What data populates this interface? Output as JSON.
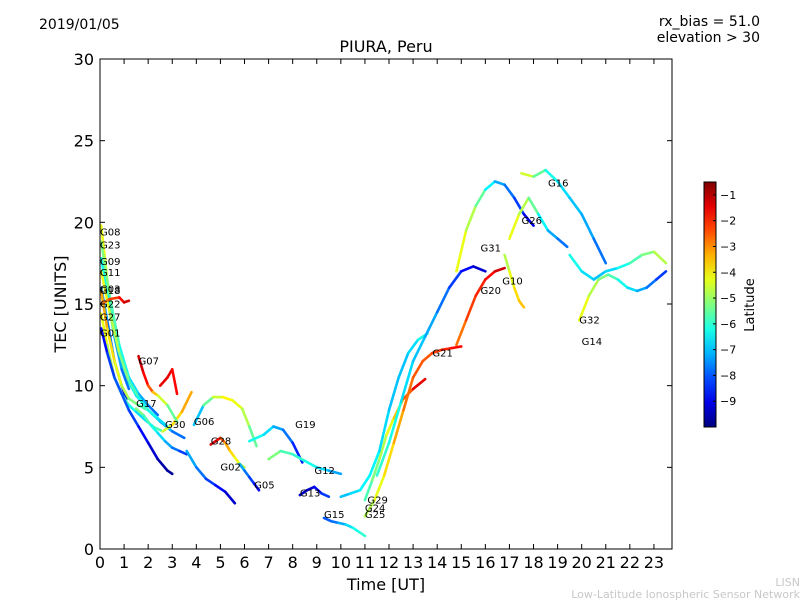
{
  "header": {
    "date": "2019/01/05",
    "rx_bias": "rx_bias = 51.0",
    "elevation": "elevation > 30"
  },
  "footer": {
    "line1": "LISN",
    "line2": "Low-Latitude Ionospheric Sensor Network"
  },
  "chart_data": {
    "type": "scatter",
    "title": "PIURA, Peru",
    "xlabel": "Time [UT]",
    "ylabel": "TEC [UNITS]",
    "xlim": [
      0,
      23.75
    ],
    "ylim": [
      0,
      30
    ],
    "xticks": [
      0,
      1,
      2,
      3,
      4,
      5,
      6,
      7,
      8,
      9,
      10,
      11,
      12,
      13,
      14,
      15,
      16,
      17,
      18,
      19,
      20,
      21,
      22,
      23
    ],
    "yticks": [
      0,
      5,
      10,
      15,
      20,
      25,
      30
    ],
    "grid": false,
    "colorbar": {
      "label": "Latitude",
      "min": -10,
      "max": -0.5,
      "ticks": [
        -1,
        -2,
        -3,
        -4,
        -5,
        -6,
        -7,
        -8,
        -9
      ]
    },
    "series": [
      {
        "name": "G08",
        "label_at": [
          0.0,
          19.2
        ],
        "x": [
          0.05,
          0.3,
          0.6,
          0.9,
          1.2,
          1.5,
          1.8
        ],
        "y": [
          19.8,
          16.5,
          13.5,
          11.5,
          10.2,
          9.4,
          8.9
        ],
        "lat": [
          -4,
          -4.5,
          -5,
          -5.5,
          -6,
          -6.5,
          -7
        ]
      },
      {
        "name": "G23",
        "label_at": [
          0.0,
          18.4
        ],
        "x": [
          0.05,
          0.4,
          0.8,
          1.2,
          1.6,
          2.0,
          2.4
        ],
        "y": [
          18.8,
          15.5,
          12.5,
          10.5,
          9.5,
          8.8,
          8.2
        ],
        "lat": [
          -5,
          -5.5,
          -6,
          -6.5,
          -7,
          -7.5,
          -8
        ]
      },
      {
        "name": "G09",
        "label_at": [
          0.0,
          17.4
        ],
        "x": [
          0.05,
          0.3,
          0.6,
          0.9,
          1.2
        ],
        "y": [
          17.8,
          15.5,
          13.0,
          11.0,
          9.8
        ],
        "lat": [
          -6,
          -6.5,
          -7,
          -7.5,
          -8
        ]
      },
      {
        "name": "G11",
        "label_at": [
          0.0,
          16.7
        ],
        "x": [
          0.05,
          0.4,
          0.8,
          1.2,
          1.6,
          2.0,
          2.5,
          3.0,
          3.5
        ],
        "y": [
          17.0,
          14.5,
          12.0,
          10.3,
          9.3,
          8.5,
          7.8,
          7.2,
          6.8
        ],
        "lat": [
          -4,
          -4.5,
          -5,
          -5.5,
          -6,
          -6.5,
          -7,
          -7.5,
          -8
        ]
      },
      {
        "name": "G03",
        "label_at": [
          0.0,
          15.7
        ],
        "x": [
          0.05,
          0.3,
          0.6,
          0.9,
          1.1
        ],
        "y": [
          16.0,
          14.0,
          11.5,
          10.0,
          9.2
        ],
        "lat": [
          -7,
          -7.5,
          -8,
          -8.5,
          -9.5
        ]
      },
      {
        "name": "G18",
        "label_at": [
          0.0,
          15.6
        ],
        "x": [
          0.05,
          0.3,
          0.6,
          0.9,
          1.2,
          1.6,
          2.0,
          2.4,
          2.8
        ],
        "y": [
          15.8,
          13.5,
          11.5,
          10.0,
          9.2,
          8.8,
          8.5,
          8.0,
          7.5
        ],
        "lat": [
          -3,
          -3.5,
          -4,
          -4.5,
          -5,
          -5.5,
          -6,
          -6.5,
          -7
        ]
      },
      {
        "name": "G22",
        "label_at": [
          0.0,
          14.8
        ],
        "x": [
          0.05,
          0.4,
          0.8,
          1.0,
          1.2
        ],
        "y": [
          15.0,
          15.3,
          15.4,
          15.1,
          15.2
        ],
        "lat": [
          -3,
          -2.5,
          -2,
          -1.5,
          -1
        ]
      },
      {
        "name": "G27",
        "label_at": [
          0.0,
          14.0
        ],
        "x": [
          0.05,
          0.3,
          0.6,
          0.9,
          1.2,
          1.5,
          1.8,
          2.2,
          2.6,
          3.0,
          3.4,
          3.8
        ],
        "y": [
          14.4,
          12.5,
          10.5,
          9.5,
          8.8,
          8.4,
          8.0,
          7.5,
          7.2,
          7.6,
          8.4,
          9.6
        ],
        "lat": [
          -4,
          -4.5,
          -5,
          -5.5,
          -6,
          -6.5,
          -7,
          -6.5,
          -5,
          -4,
          -3.5,
          -3
        ]
      },
      {
        "name": "G01",
        "label_at": [
          0.0,
          13.0
        ],
        "x": [
          0.05,
          0.3,
          0.6,
          0.9,
          1.2,
          1.6,
          2.0,
          2.4,
          2.8,
          3.0
        ],
        "y": [
          13.5,
          12.0,
          10.5,
          9.5,
          8.5,
          7.5,
          6.5,
          5.5,
          4.8,
          4.6
        ],
        "lat": [
          -9,
          -8.5,
          -8,
          -8,
          -8,
          -8.5,
          -9,
          -9.5,
          -9.7,
          -9.8
        ]
      },
      {
        "name": "G07",
        "label_at": [
          1.6,
          11.3
        ],
        "x": [
          1.6,
          1.8,
          2.0,
          2.2,
          2.4,
          2.8,
          3.2
        ],
        "y": [
          11.8,
          10.8,
          10.0,
          9.6,
          9.4,
          8.8,
          7.8
        ],
        "lat": [
          -1,
          -1.5,
          -2,
          -3,
          -4,
          -5,
          -6
        ]
      },
      {
        "name": "G17",
        "label_at": [
          1.5,
          8.7
        ],
        "x": [
          1.5,
          1.8,
          2.1,
          2.4,
          2.7,
          3.0,
          3.3,
          3.6
        ],
        "y": [
          8.6,
          8.2,
          7.6,
          7.1,
          6.6,
          6.2,
          6.0,
          5.8
        ],
        "lat": [
          -5,
          -5.5,
          -6,
          -6.5,
          -7,
          -7.5,
          -8,
          -8.5
        ]
      },
      {
        "name": "G30",
        "label_at": [
          2.7,
          7.4
        ],
        "x": [
          2.5,
          2.8,
          3.0,
          3.2
        ],
        "y": [
          10.0,
          10.5,
          11.0,
          9.5
        ],
        "lat": [
          -1.5,
          -1.5,
          -1.5,
          -2
        ]
      },
      {
        "name": "G06",
        "label_at": [
          3.9,
          7.6
        ],
        "x": [
          3.9,
          4.3,
          4.7,
          5.1,
          5.5,
          5.9,
          6.2,
          6.5
        ],
        "y": [
          7.6,
          8.8,
          9.3,
          9.3,
          9.1,
          8.6,
          7.5,
          6.3
        ],
        "lat": [
          -8,
          -6,
          -5,
          -4,
          -4,
          -4.5,
          -5,
          -6
        ]
      },
      {
        "name": "G28",
        "label_at": [
          4.6,
          6.4
        ],
        "x": [
          4.6,
          4.8,
          5.0,
          5.2,
          5.4,
          5.6,
          5.8,
          6.0
        ],
        "y": [
          6.4,
          6.6,
          6.8,
          6.5,
          6.0,
          5.6,
          5.2,
          5.0
        ],
        "lat": [
          -1,
          -1.5,
          -2,
          -3,
          -3.5,
          -4,
          -4.5,
          -5
        ]
      },
      {
        "name": "G02",
        "label_at": [
          5.0,
          4.8
        ],
        "x": [
          3.6,
          4.0,
          4.4,
          4.8,
          5.2,
          5.6
        ],
        "y": [
          6.0,
          5.0,
          4.3,
          3.9,
          3.5,
          2.8
        ],
        "lat": [
          -7,
          -7.5,
          -8,
          -8.5,
          -9,
          -9.5
        ]
      },
      {
        "name": "G05",
        "label_at": [
          6.4,
          3.7
        ],
        "x": [
          5.8,
          6.0,
          6.2,
          6.4,
          6.6
        ],
        "y": [
          5.2,
          4.8,
          4.4,
          4.0,
          3.6
        ],
        "lat": [
          -7,
          -7.5,
          -8,
          -8.5,
          -9
        ]
      },
      {
        "name": "G19",
        "label_at": [
          8.1,
          7.4
        ],
        "x": [
          6.2,
          6.8,
          7.2,
          7.6,
          8.0,
          8.4
        ],
        "y": [
          6.6,
          7.0,
          7.5,
          7.3,
          6.5,
          5.3
        ],
        "lat": [
          -6,
          -6.5,
          -7,
          -7.5,
          -8,
          -9
        ]
      },
      {
        "name": "G12",
        "label_at": [
          8.9,
          4.6
        ],
        "x": [
          7.0,
          7.5,
          8.0,
          8.5,
          9.0,
          9.5,
          10.0
        ],
        "y": [
          5.5,
          6.0,
          5.8,
          5.4,
          5.0,
          4.8,
          4.6
        ],
        "lat": [
          -5,
          -5.5,
          -6,
          -6,
          -6.5,
          -7,
          -7.5
        ]
      },
      {
        "name": "G13",
        "label_at": [
          8.3,
          3.2
        ],
        "x": [
          8.3,
          8.6,
          8.9,
          9.2,
          9.5
        ],
        "y": [
          3.3,
          3.6,
          3.8,
          3.4,
          3.2
        ],
        "lat": [
          -9,
          -9.5,
          -9,
          -8.5,
          -8
        ]
      },
      {
        "name": "G15",
        "label_at": [
          9.3,
          1.9
        ],
        "x": [
          9.3,
          9.6,
          9.9,
          10.2,
          10.5,
          10.8,
          11.0
        ],
        "y": [
          1.9,
          1.7,
          1.6,
          1.5,
          1.3,
          1.0,
          0.8
        ],
        "lat": [
          -8,
          -8,
          -7.5,
          -7,
          -6.5,
          -6,
          -6
        ]
      },
      {
        "name": "G29",
        "label_at": [
          11.1,
          2.8
        ],
        "x": [
          11.0,
          11.3,
          11.6,
          11.9,
          12.2,
          12.6,
          13.0,
          13.5
        ],
        "y": [
          3.0,
          4.2,
          5.5,
          7.0,
          8.0,
          9.2,
          9.8,
          10.4
        ],
        "lat": [
          -6,
          -5.5,
          -5,
          -4.5,
          -4,
          -3,
          -2,
          -1
        ]
      },
      {
        "name": "G24",
        "label_at": [
          11.0,
          2.3
        ],
        "x": [
          10.0,
          10.4,
          10.8,
          11.2,
          11.6,
          12.0,
          12.4,
          12.8,
          13.2,
          13.6
        ],
        "y": [
          3.2,
          3.4,
          3.6,
          4.5,
          6.0,
          8.5,
          10.5,
          12.0,
          12.8,
          13.2
        ],
        "lat": [
          -7,
          -7,
          -6.5,
          -6.5,
          -6.5,
          -7,
          -7,
          -7,
          -6.5,
          -6
        ]
      },
      {
        "name": "G25",
        "label_at": [
          11.0,
          1.9
        ],
        "x": [
          11.0,
          11.4,
          11.8,
          12.2,
          12.6,
          13.0,
          13.4,
          13.8,
          14.2,
          14.6,
          15.0
        ],
        "y": [
          2.0,
          3.0,
          4.5,
          6.5,
          8.5,
          10.5,
          11.5,
          12.0,
          12.2,
          12.3,
          12.4
        ],
        "lat": [
          -5,
          -4.5,
          -4,
          -3.5,
          -3,
          -2.5,
          -2.5,
          -2.5,
          -2,
          -2,
          -1.5
        ]
      },
      {
        "name": "G21",
        "label_at": [
          13.8,
          11.8
        ],
        "x": [
          11.5,
          12.0,
          12.5,
          13.0,
          13.5,
          14.0,
          14.5,
          15.0,
          15.5,
          16.0
        ],
        "y": [
          4.5,
          6.5,
          9.0,
          11.5,
          13.0,
          14.5,
          16.0,
          17.0,
          17.3,
          17.0
        ],
        "lat": [
          -6,
          -6,
          -6.5,
          -7,
          -7,
          -7.5,
          -8,
          -8.5,
          -9,
          -9.5
        ]
      },
      {
        "name": "G31",
        "label_at": [
          15.8,
          18.2
        ],
        "x": [
          14.8,
          15.2,
          15.6,
          16.0,
          16.4,
          16.8,
          17.2,
          17.6,
          18.0
        ],
        "y": [
          17.0,
          19.5,
          21.0,
          22.0,
          22.5,
          22.3,
          21.5,
          20.5,
          19.8
        ],
        "lat": [
          -4,
          -4.5,
          -5,
          -6,
          -7,
          -7.5,
          -8,
          -8.5,
          -9.5
        ]
      },
      {
        "name": "G20",
        "label_at": [
          15.8,
          15.6
        ],
        "x": [
          14.8,
          15.2,
          15.6,
          16.0,
          16.4,
          16.8
        ],
        "y": [
          12.5,
          14.0,
          15.5,
          16.5,
          17.0,
          17.2
        ],
        "lat": [
          -3,
          -2.5,
          -2,
          -2,
          -1.5,
          -1
        ]
      },
      {
        "name": "G10",
        "label_at": [
          16.7,
          16.2
        ],
        "x": [
          16.8,
          17.0,
          17.2,
          17.4,
          17.6
        ],
        "y": [
          18.0,
          17.0,
          16.0,
          15.2,
          14.8
        ],
        "lat": [
          -5,
          -4.5,
          -4,
          -3.5,
          -3.5
        ]
      },
      {
        "name": "G26",
        "label_at": [
          17.5,
          19.9
        ],
        "x": [
          17.0,
          17.4,
          17.8,
          18.2,
          18.6,
          19.0,
          19.4
        ],
        "y": [
          19.0,
          20.5,
          21.5,
          20.5,
          19.5,
          19.0,
          18.5
        ],
        "lat": [
          -4,
          -4.5,
          -5,
          -6,
          -7,
          -7.5,
          -8
        ]
      },
      {
        "name": "G16",
        "label_at": [
          18.6,
          22.2
        ],
        "x": [
          17.5,
          18.0,
          18.5,
          19.0,
          19.5,
          20.0,
          20.5,
          21.0
        ],
        "y": [
          23.0,
          22.8,
          23.2,
          22.5,
          21.5,
          20.5,
          19.0,
          17.5
        ],
        "lat": [
          -4,
          -5,
          -6,
          -6.5,
          -7,
          -7,
          -7.5,
          -8
        ]
      },
      {
        "name": "G32",
        "label_at": [
          19.9,
          13.8
        ],
        "x": [
          19.9,
          20.3,
          20.7,
          21.1,
          21.5,
          21.9,
          22.3,
          22.7,
          23.1,
          23.5
        ],
        "y": [
          14.0,
          15.5,
          16.5,
          16.8,
          16.5,
          16.0,
          15.8,
          16.0,
          16.5,
          17.0
        ],
        "lat": [
          -4,
          -4.5,
          -5,
          -5.5,
          -6,
          -6.5,
          -7,
          -7.5,
          -8,
          -8.5
        ]
      },
      {
        "name": "G14",
        "label_at": [
          20.0,
          12.5
        ],
        "x": [
          19.5,
          20.0,
          20.5,
          21.0,
          21.5,
          22.0,
          22.5,
          23.0,
          23.5
        ],
        "y": [
          18.0,
          17.0,
          16.5,
          17.0,
          17.2,
          17.5,
          18.0,
          18.2,
          17.5
        ],
        "lat": [
          -6,
          -6.5,
          -7,
          -7,
          -6.5,
          -6,
          -5.5,
          -5,
          -4.5
        ]
      }
    ]
  }
}
